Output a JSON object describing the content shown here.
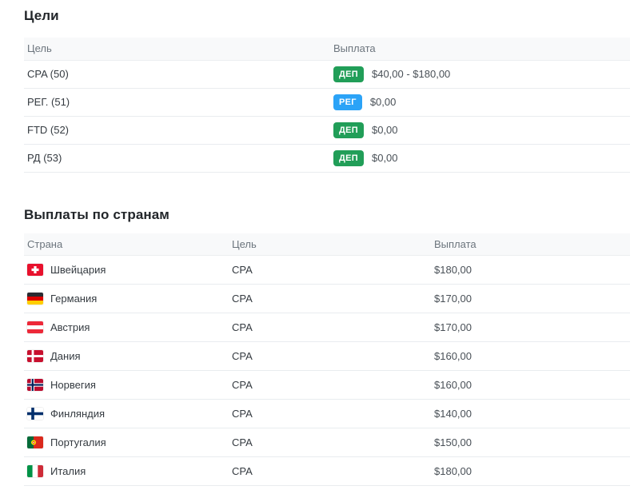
{
  "colors": {
    "badge_green": "#219e58",
    "badge_blue": "#2ba3f7"
  },
  "goals_section": {
    "title": "Цели",
    "columns": [
      "Цель",
      "Выплата"
    ],
    "rows": [
      {
        "goal": "CPA (50)",
        "badge": "ДЕП",
        "badge_color": "badge_green",
        "payout": "$40,00 - $180,00"
      },
      {
        "goal": "РЕГ. (51)",
        "badge": "РЕГ",
        "badge_color": "badge_blue",
        "payout": "$0,00"
      },
      {
        "goal": "FTD (52)",
        "badge": "ДЕП",
        "badge_color": "badge_green",
        "payout": "$0,00"
      },
      {
        "goal": "РД (53)",
        "badge": "ДЕП",
        "badge_color": "badge_green",
        "payout": "$0,00"
      }
    ]
  },
  "countries_section": {
    "title": "Выплаты по странам",
    "columns": [
      "Страна",
      "Цель",
      "Выплата"
    ],
    "rows": [
      {
        "flag": "switzerland",
        "country": "Швейцария",
        "goal": "CPA",
        "payout": "$180,00"
      },
      {
        "flag": "germany",
        "country": "Германия",
        "goal": "CPA",
        "payout": "$170,00"
      },
      {
        "flag": "austria",
        "country": "Австрия",
        "goal": "CPA",
        "payout": "$170,00"
      },
      {
        "flag": "denmark",
        "country": "Дания",
        "goal": "CPA",
        "payout": "$160,00"
      },
      {
        "flag": "norway",
        "country": "Норвегия",
        "goal": "CPA",
        "payout": "$160,00"
      },
      {
        "flag": "finland",
        "country": "Финляндия",
        "goal": "CPA",
        "payout": "$140,00"
      },
      {
        "flag": "portugal",
        "country": "Португалия",
        "goal": "CPA",
        "payout": "$150,00"
      },
      {
        "flag": "italy",
        "country": "Италия",
        "goal": "CPA",
        "payout": "$180,00"
      }
    ]
  }
}
